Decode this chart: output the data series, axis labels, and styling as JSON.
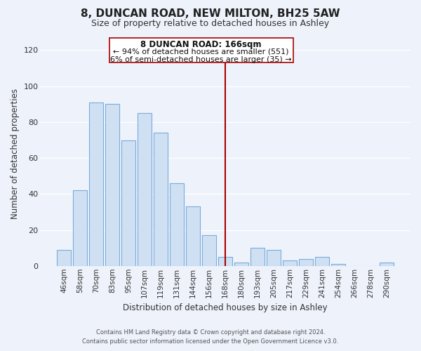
{
  "title": "8, DUNCAN ROAD, NEW MILTON, BH25 5AW",
  "subtitle": "Size of property relative to detached houses in Ashley",
  "xlabel": "Distribution of detached houses by size in Ashley",
  "ylabel": "Number of detached properties",
  "bar_labels": [
    "46sqm",
    "58sqm",
    "70sqm",
    "83sqm",
    "95sqm",
    "107sqm",
    "119sqm",
    "131sqm",
    "144sqm",
    "156sqm",
    "168sqm",
    "180sqm",
    "193sqm",
    "205sqm",
    "217sqm",
    "229sqm",
    "241sqm",
    "254sqm",
    "266sqm",
    "278sqm",
    "290sqm"
  ],
  "bar_values": [
    9,
    42,
    91,
    90,
    70,
    85,
    74,
    46,
    33,
    17,
    5,
    2,
    10,
    9,
    3,
    4,
    5,
    1,
    0,
    0,
    2
  ],
  "bar_color": "#cfe0f3",
  "bar_edge_color": "#7aabda",
  "highlight_line_color": "#aa0000",
  "ylim": [
    0,
    125
  ],
  "yticks": [
    0,
    20,
    40,
    60,
    80,
    100,
    120
  ],
  "annotation_title": "8 DUNCAN ROAD: 166sqm",
  "annotation_line1": "← 94% of detached houses are smaller (551)",
  "annotation_line2": "6% of semi-detached houses are larger (35) →",
  "annotation_box_color": "#ffffff",
  "annotation_box_edge": "#aa0000",
  "footer_line1": "Contains HM Land Registry data © Crown copyright and database right 2024.",
  "footer_line2": "Contains public sector information licensed under the Open Government Licence v3.0.",
  "background_color": "#edf2fb",
  "grid_color": "#ffffff",
  "title_fontsize": 11,
  "subtitle_fontsize": 9,
  "axis_label_fontsize": 8.5,
  "tick_fontsize": 7.5
}
